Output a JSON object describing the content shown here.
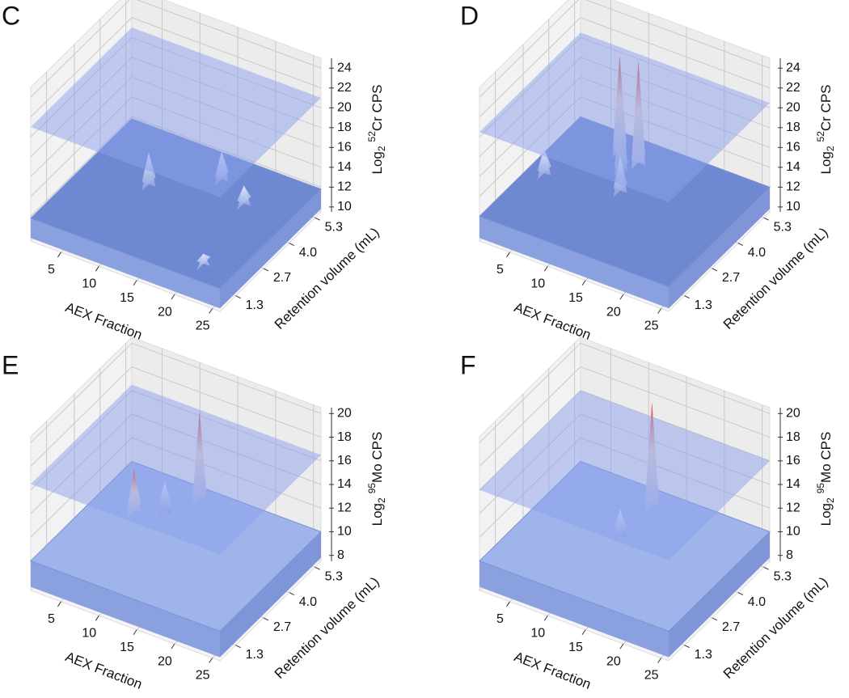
{
  "chart_data": [
    {
      "type": "surface",
      "panel": "C",
      "x_label": "AEX Fraction",
      "y_label": "Retention volume (mL)",
      "z_label": {
        "base": "Log",
        "sub": "2",
        "sup": "52",
        "rest": "Cr CPS"
      },
      "xlim": [
        1,
        26
      ],
      "xticks": [
        5,
        10,
        15,
        20,
        25
      ],
      "ylim": [
        0.5,
        5.6
      ],
      "yticks": [
        1.3,
        2.7,
        {
          "value": 4,
          "label": "4.0"
        },
        5.3
      ],
      "zlim": [
        9.5,
        25
      ],
      "zticks": [
        10,
        12,
        14,
        16,
        18,
        20,
        22,
        24
      ]
    },
    {
      "type": "surface",
      "panel": "D",
      "x_label": "AEX Fraction",
      "y_label": "Retention volume (mL)",
      "z_label": {
        "base": "Log",
        "sub": "2",
        "sup": "52",
        "rest": "Cr CPS"
      },
      "xlim": [
        1,
        26
      ],
      "xticks": [
        5,
        10,
        15,
        20,
        25
      ],
      "ylim": [
        0.5,
        5.6
      ],
      "yticks": [
        1.3,
        2.7,
        {
          "value": 4,
          "label": "4.0"
        },
        5.3
      ],
      "zlim": [
        9.5,
        25
      ],
      "zticks": [
        10,
        12,
        14,
        16,
        18,
        20,
        22,
        24
      ]
    },
    {
      "type": "surface",
      "panel": "E",
      "x_label": "AEX Fraction",
      "y_label": "Retention volume (mL)",
      "z_label": {
        "base": "Log",
        "sub": "2",
        "sup": "95",
        "rest": "Mo CPS"
      },
      "xlim": [
        1,
        26
      ],
      "xticks": [
        5,
        10,
        15,
        20,
        25
      ],
      "ylim": [
        0.5,
        5.6
      ],
      "yticks": [
        1.3,
        2.7,
        {
          "value": 4,
          "label": "4.0"
        },
        5.3
      ],
      "zlim": [
        7.5,
        20.5
      ],
      "zticks": [
        8,
        10,
        12,
        14,
        16,
        18,
        20
      ]
    },
    {
      "type": "surface",
      "panel": "F",
      "x_label": "AEX Fraction",
      "y_label": "Retention volume (mL)",
      "z_label": {
        "base": "Log",
        "sub": "2",
        "sup": "95",
        "rest": "Mo CPS"
      },
      "xlim": [
        1,
        26
      ],
      "xticks": [
        5,
        10,
        15,
        20,
        25
      ],
      "ylim": [
        0.5,
        5.6
      ],
      "yticks": [
        1.3,
        2.7,
        {
          "value": 4,
          "label": "4.0"
        },
        5.3
      ],
      "zlim": [
        7.5,
        20.5
      ],
      "zticks": [
        8,
        10,
        12,
        14,
        16,
        18,
        20
      ]
    }
  ]
}
